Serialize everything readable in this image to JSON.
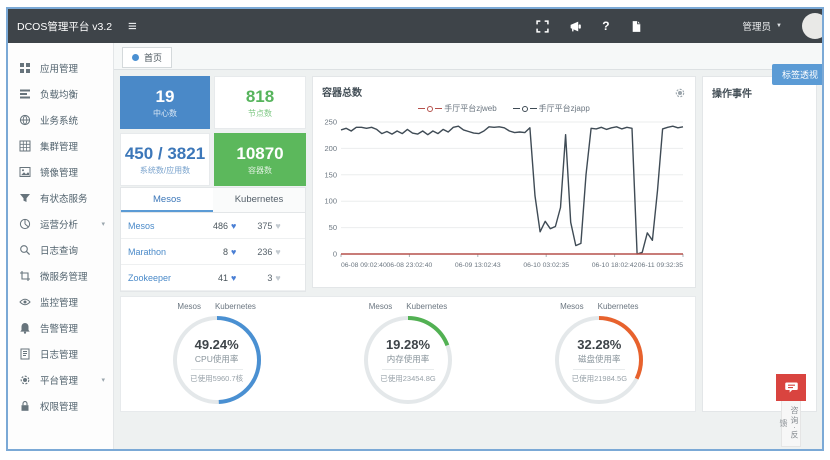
{
  "header": {
    "brand": "DCOS管理平台 v3.2",
    "user": "管理员",
    "icons": [
      "fullscreen-icon",
      "announcement-icon",
      "help-icon",
      "document-icon"
    ],
    "help_glyph": "?"
  },
  "sidebar": {
    "items": [
      {
        "label": "应用管理",
        "icon": "apps-icon",
        "chevron": false
      },
      {
        "label": "负载均衡",
        "icon": "load-balance-icon",
        "chevron": false
      },
      {
        "label": "业务系统",
        "icon": "business-icon",
        "chevron": false
      },
      {
        "label": "集群管理",
        "icon": "cluster-icon",
        "chevron": false
      },
      {
        "label": "镜像管理",
        "icon": "image-icon",
        "chevron": false
      },
      {
        "label": "有状态服务",
        "icon": "stateful-icon",
        "chevron": false
      },
      {
        "label": "运营分析",
        "icon": "analysis-icon",
        "chevron": true
      },
      {
        "label": "日志查询",
        "icon": "log-search-icon",
        "chevron": false
      },
      {
        "label": "微服务管理",
        "icon": "microservice-icon",
        "chevron": false
      },
      {
        "label": "监控管理",
        "icon": "monitor-icon",
        "chevron": false
      },
      {
        "label": "告警管理",
        "icon": "alert-icon",
        "chevron": false
      },
      {
        "label": "日志管理",
        "icon": "log-icon",
        "chevron": false
      },
      {
        "label": "平台管理",
        "icon": "platform-icon",
        "chevron": true
      },
      {
        "label": "权限管理",
        "icon": "permission-icon",
        "chevron": false
      }
    ]
  },
  "tabbar": {
    "home_tab": "首页"
  },
  "actions": {
    "tag_button": "标签透视"
  },
  "stats": [
    {
      "value": "19",
      "label": "中心数",
      "variant": "solid-blue"
    },
    {
      "value": "818",
      "label": "节点数",
      "variant": "green-text"
    },
    {
      "value": "450 / 3821",
      "label": "系统数/应用数",
      "variant": "blue-text"
    },
    {
      "value": "10870",
      "label": "容器数",
      "variant": "solid-green"
    }
  ],
  "service_table": {
    "tabs": [
      "Mesos",
      "Kubernetes"
    ],
    "active_tab": "Mesos",
    "rows": [
      {
        "name": "Mesos",
        "healthy": "486",
        "unhealthy": "375"
      },
      {
        "name": "Marathon",
        "healthy": "8",
        "unhealthy": "236"
      },
      {
        "name": "Zookeeper",
        "healthy": "41",
        "unhealthy": "3"
      }
    ],
    "healthy_color": "#4a7fd4",
    "unhealthy_color": "#c3cad0"
  },
  "chart_data": {
    "type": "line",
    "title": "容器总数",
    "ylim": [
      0,
      250
    ],
    "y_ticks": [
      0,
      50,
      100,
      150,
      200,
      250
    ],
    "x_labels": [
      "06-08 09:02:40",
      "06-08 23:02:40",
      "06-09 13:02:43",
      "06-10 03:02:35",
      "06-10 18:02:42",
      "06-11 09:32:35"
    ],
    "legend_position": "top-center",
    "grid": true,
    "series": [
      {
        "name": "手厅平台zjweb",
        "color": "#b5514b",
        "values": [
          0,
          0,
          0,
          0,
          0,
          0,
          0,
          0,
          0,
          0,
          0,
          0,
          0,
          0,
          0,
          0,
          0,
          0,
          0,
          0,
          0,
          0,
          0,
          0,
          0,
          0,
          0,
          0,
          0,
          0,
          0,
          0,
          0,
          0,
          0,
          0,
          0,
          0,
          0,
          0,
          0,
          0,
          0,
          0,
          0,
          0,
          0,
          0,
          0,
          0,
          0,
          0,
          0,
          0,
          0,
          0,
          0,
          0,
          0,
          0,
          0,
          0,
          0,
          0,
          0,
          0,
          0
        ]
      },
      {
        "name": "手厅平台zjapp",
        "color": "#3f4b55",
        "values": [
          235,
          238,
          233,
          240,
          240,
          238,
          240,
          236,
          228,
          232,
          227,
          233,
          228,
          236,
          229,
          227,
          233,
          226,
          233,
          228,
          236,
          231,
          240,
          242,
          235,
          232,
          229,
          228,
          233,
          241,
          240,
          241,
          239,
          233,
          230,
          231,
          230,
          239,
          110,
          42,
          62,
          48,
          52,
          88,
          226,
          60,
          16,
          20,
          150,
          238,
          237,
          240,
          236,
          239,
          241,
          237,
          240,
          238,
          0,
          3,
          40,
          26,
          120,
          237,
          240,
          242,
          239,
          241
        ]
      }
    ]
  },
  "events_panel": {
    "title": "操作事件"
  },
  "gauges": {
    "tabs": [
      "Mesos",
      "Kubernetes"
    ],
    "items": [
      {
        "pct": "49.24%",
        "value": 49.24,
        "label": "CPU使用率",
        "used": "已使用5960.7核",
        "color": "#4a90d2"
      },
      {
        "pct": "19.28%",
        "value": 19.28,
        "label": "内存使用率",
        "used": "已使用23454.8G",
        "color": "#52b153"
      },
      {
        "pct": "32.28%",
        "value": 32.28,
        "label": "磁盘使用率",
        "used": "已使用21984.5G",
        "color": "#e8622d"
      }
    ]
  },
  "feedback": {
    "label": "咨询·反馈"
  },
  "colors": {
    "header_bg": "#3e4449",
    "frame_border": "#7ba9d6",
    "accent_blue": "#4a89c8",
    "accent_green": "#5cb85c",
    "accent_orange": "#e8622d",
    "link_blue": "#4a8ac9"
  }
}
